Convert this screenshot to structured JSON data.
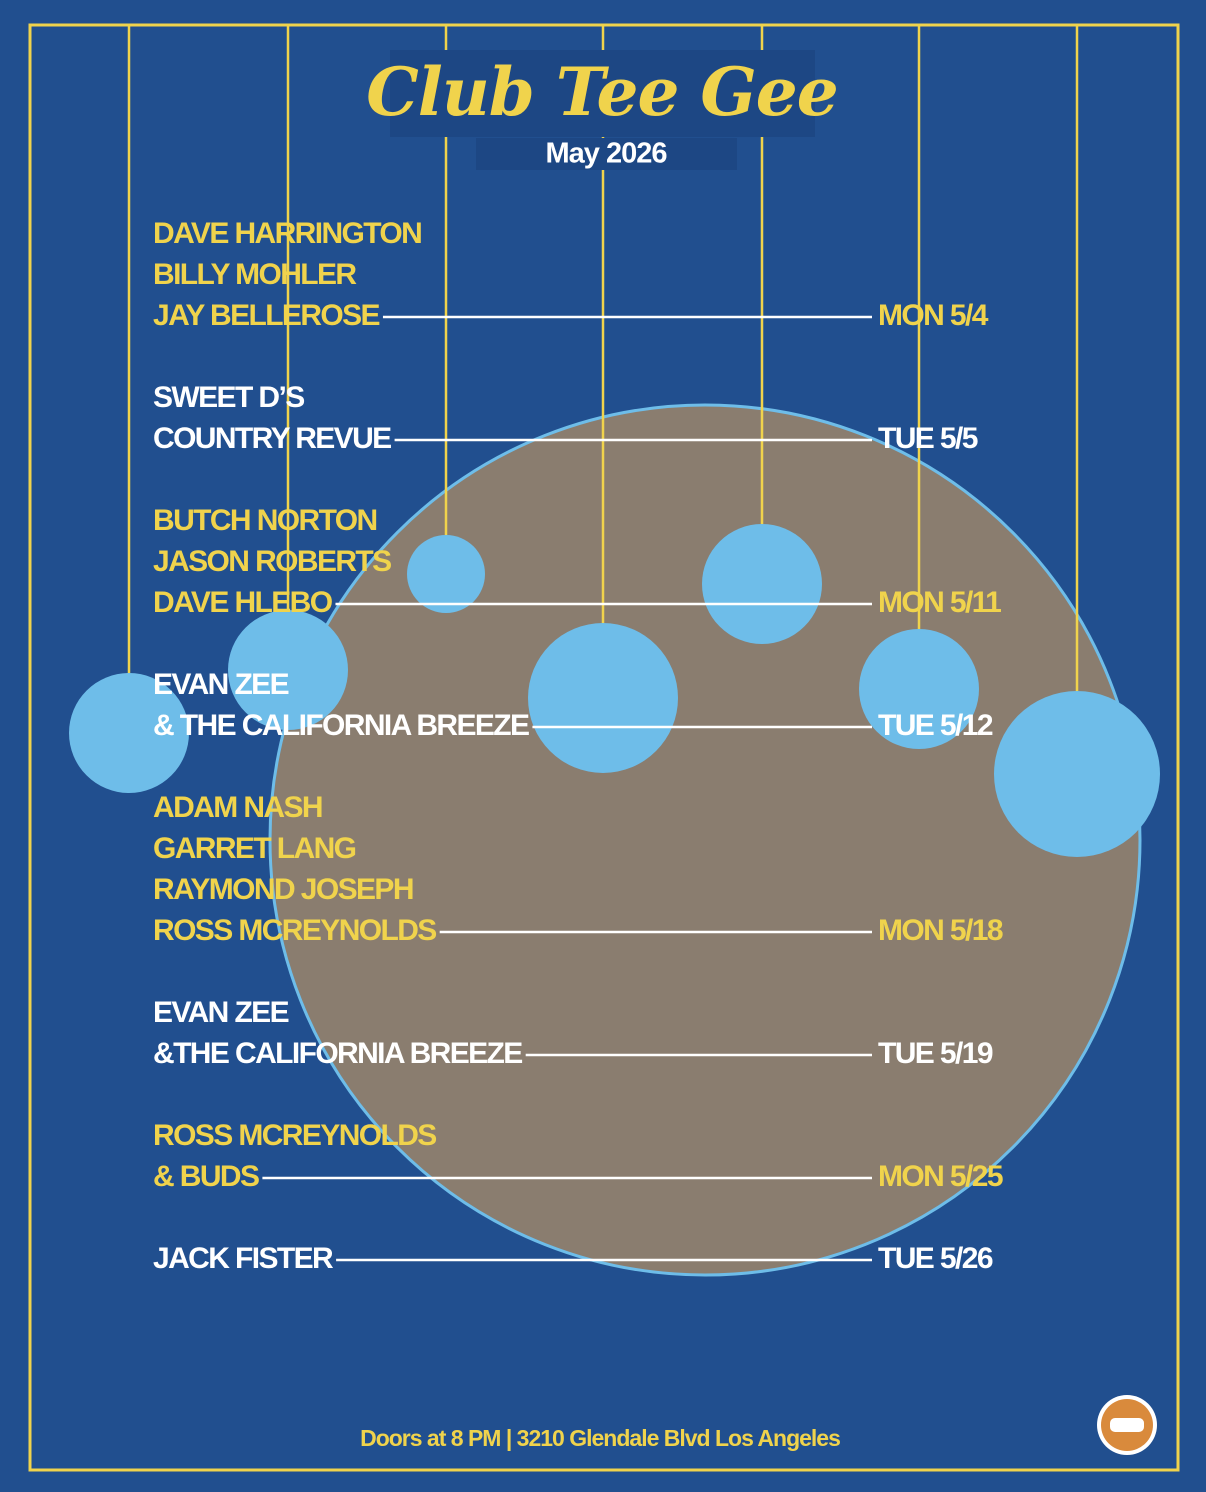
{
  "header": {
    "title": "Club Tee Gee",
    "subtitle": "May 2026"
  },
  "events": [
    {
      "lines": [
        "DAVE HARRINGTON",
        "BILLY MOHLER",
        "JAY BELLEROSE"
      ],
      "date": "MON 5/4"
    },
    {
      "lines": [
        "SWEET D’S",
        "COUNTRY REVUE"
      ],
      "date": "TUE 5/5"
    },
    {
      "lines": [
        "BUTCH NORTON",
        "JASON ROBERTS",
        "DAVE HLEBO"
      ],
      "date": "MON 5/11"
    },
    {
      "lines": [
        "EVAN ZEE",
        "& THE CALIFORNIA BREEZE"
      ],
      "date": "TUE 5/12"
    },
    {
      "lines": [
        "ADAM NASH",
        "GARRET LANG",
        "RAYMOND JOSEPH",
        "ROSS MCREYNOLDS"
      ],
      "date": "MON 5/18"
    },
    {
      "lines": [
        "EVAN ZEE",
        "&THE CALIFORNIA BREEZE"
      ],
      "date": "TUE 5/19"
    },
    {
      "lines": [
        "ROSS MCREYNOLDS",
        "& BUDS"
      ],
      "date": "MON 5/25"
    },
    {
      "lines": [
        "JACK FISTER"
      ],
      "date": "TUE 5/26"
    }
  ],
  "footer": "Doors at 8 PM | 3210 Glendale Blvd Los Angeles"
}
